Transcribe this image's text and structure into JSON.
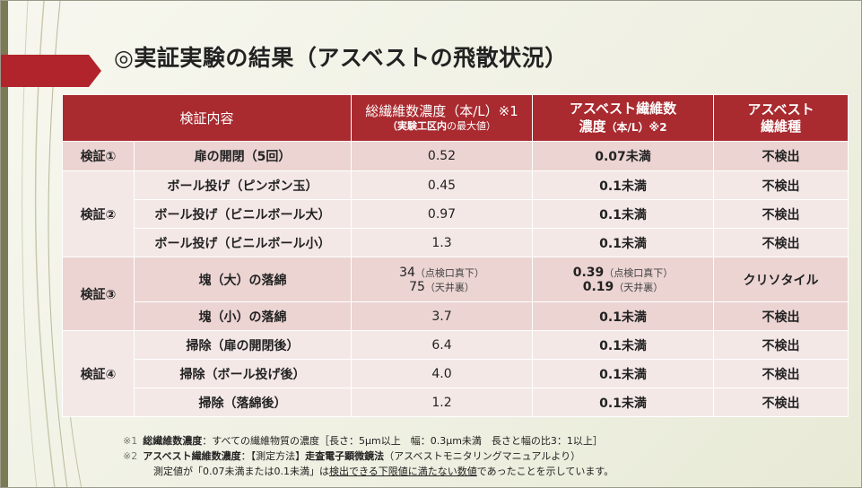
{
  "title": "◎実証実験の結果（アスベストの飛散状況）",
  "table": {
    "headers": {
      "col1": "検証内容",
      "col2_main": "総繊維数濃度（本/L）※1",
      "col2_sub_bold": "（実験工区内",
      "col2_sub_rest": "の最大値）",
      "col3_line1": "アスベスト繊維数",
      "col3_line2": "濃度",
      "col3_line2_unit": "（本/L）※2",
      "col4_line1": "アスベスト",
      "col4_line2": "繊維種"
    },
    "rows": [
      {
        "group": "検証①",
        "method": "扉の開閉（5回）",
        "total": "0.52",
        "asbestos": "0.07未満",
        "type": "不検出"
      },
      {
        "group": "検証②",
        "method": "ボール投げ（ピンポン玉）",
        "total": "0.45",
        "asbestos": "0.1未満",
        "type": "不検出"
      },
      {
        "group": "",
        "method": "ボール投げ（ビニルボール大）",
        "total": "0.97",
        "asbestos": "0.1未満",
        "type": "不検出"
      },
      {
        "group": "",
        "method": "ボール投げ（ビニルボール小）",
        "total": "1.3",
        "asbestos": "0.1未満",
        "type": "不検出"
      },
      {
        "group": "検証③",
        "method": "塊（大）の落綿",
        "total": "34",
        "total_note": "（点検口真下）",
        "total2": "75",
        "total2_note": "（天井裏）",
        "asbestos": "0.39",
        "asbestos_note": "（点検口真下）",
        "asbestos2": "0.19",
        "asbestos2_note": "（天井裏）",
        "type": "クリソタイル"
      },
      {
        "group": "",
        "method": "塊（小）の落綿",
        "total": "3.7",
        "asbestos": "0.1未満",
        "type": "不検出"
      },
      {
        "group": "検証④",
        "method": "掃除（扉の開閉後）",
        "total": "6.4",
        "asbestos": "0.1未満",
        "type": "不検出"
      },
      {
        "group": "",
        "method": "掃除（ボール投げ後）",
        "total": "4.0",
        "asbestos": "0.1未満",
        "type": "不検出"
      },
      {
        "group": "",
        "method": "掃除（落綿後）",
        "total": "1.2",
        "asbestos": "0.1未満",
        "type": "不検出"
      }
    ]
  },
  "footnotes": {
    "n1_mark": "※1",
    "n1_term": "総繊維数濃度",
    "n1_text": "：すべての繊維物質の濃度［長さ：5μm以上　幅：0.3μm未満　長さと幅の比3：1以上］",
    "n2_mark": "※2",
    "n2_term": "アスベスト繊維数濃度",
    "n2_text_a": "：【測定方法】",
    "n2_method": "走査電子顕微鏡法",
    "n2_text_b": "（アスベストモニタリングマニュアルより）",
    "n3_text_a": "測定値が「0.07未満または0.1未満」は",
    "n3_underline": "検出できる下限値に満たない数値",
    "n3_text_b": "であったことを示しています。"
  },
  "colors": {
    "accent": "#a92a2f",
    "band_a": "#ebd4d2",
    "band_b": "#f4e8e7",
    "background": "#f2f2e6"
  }
}
